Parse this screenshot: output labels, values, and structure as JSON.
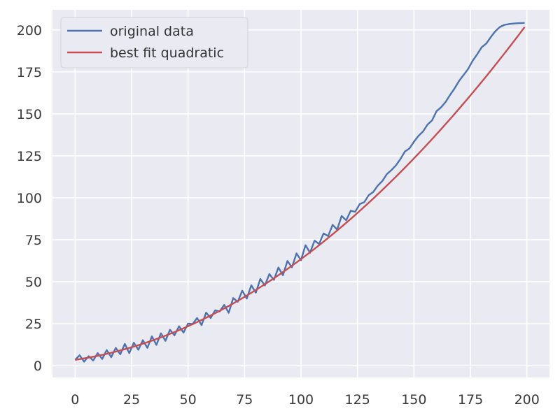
{
  "chart_data": {
    "type": "line",
    "title": "",
    "xlabel": "",
    "ylabel": "",
    "xlim": [
      -10,
      210
    ],
    "ylim": [
      -7,
      212
    ],
    "x_ticks": [
      0,
      25,
      50,
      75,
      100,
      125,
      150,
      175,
      200
    ],
    "y_ticks": [
      0,
      25,
      50,
      75,
      100,
      125,
      150,
      175,
      200
    ],
    "x_tick_labels": [
      "0",
      "25",
      "50",
      "75",
      "100",
      "125",
      "150",
      "175",
      "200"
    ],
    "y_tick_labels": [
      "0",
      "25",
      "50",
      "75",
      "100",
      "125",
      "150",
      "175",
      "200"
    ],
    "grid": true,
    "legend_position": "top-left",
    "colors": {
      "background": "#eaeaf2",
      "grid": "#ffffff",
      "original": "#4c72b0",
      "fit": "#c44e52"
    },
    "series": [
      {
        "name": "original data",
        "color": "#4c72b0",
        "x": [
          0,
          2,
          4,
          6,
          8,
          10,
          12,
          14,
          16,
          18,
          20,
          22,
          24,
          26,
          28,
          30,
          32,
          34,
          36,
          38,
          40,
          42,
          44,
          46,
          48,
          50,
          52,
          54,
          56,
          58,
          60,
          62,
          64,
          66,
          68,
          70,
          72,
          74,
          76,
          78,
          80,
          82,
          84,
          86,
          88,
          90,
          92,
          94,
          96,
          98,
          100,
          102,
          104,
          106,
          108,
          110,
          112,
          114,
          116,
          118,
          120,
          122,
          124,
          126,
          128,
          130,
          132,
          134,
          136,
          138,
          140,
          142,
          144,
          146,
          148,
          150,
          152,
          154,
          156,
          158,
          160,
          162,
          164,
          166,
          168,
          170,
          172,
          174,
          176,
          178,
          180,
          182,
          184,
          186,
          188,
          190,
          192,
          194,
          196,
          198,
          199
        ],
        "values": [
          3.5,
          6.2,
          2.4,
          5.7,
          3.1,
          7.5,
          4.0,
          9.3,
          5.1,
          10.6,
          6.8,
          13.0,
          7.5,
          13.7,
          9.5,
          15.2,
          10.6,
          17.5,
          12.4,
          19.3,
          14.8,
          21.4,
          18.1,
          23.5,
          19.7,
          25.1,
          24.8,
          28.4,
          24.2,
          31.6,
          28.4,
          33.0,
          32.3,
          36.2,
          31.5,
          40.3,
          38.1,
          44.7,
          40.0,
          47.9,
          43.5,
          51.7,
          47.8,
          54.6,
          51.1,
          58.5,
          53.9,
          62.4,
          58.6,
          66.9,
          62.9,
          71.8,
          67.3,
          74.5,
          72.5,
          78.8,
          77.2,
          83.9,
          81.1,
          89.2,
          86.6,
          92.3,
          91.7,
          96.3,
          97.4,
          101.6,
          103.5,
          107.3,
          110.0,
          114.1,
          116.5,
          119.3,
          123.1,
          127.6,
          129.4,
          133.4,
          136.9,
          139.5,
          143.6,
          146.1,
          151.6,
          153.9,
          157.1,
          161.3,
          165.2,
          169.7,
          173.2,
          176.8,
          181.7,
          185.5,
          189.7,
          191.9,
          195.7,
          199.2,
          201.7,
          203.0,
          203.5,
          203.8,
          204.0,
          204.1,
          204.2
        ]
      },
      {
        "name": "best fit quadratic",
        "color": "#c44e52",
        "coefficients": {
          "a": 0.004,
          "b": 0.2,
          "c": 3.5
        }
      }
    ]
  }
}
